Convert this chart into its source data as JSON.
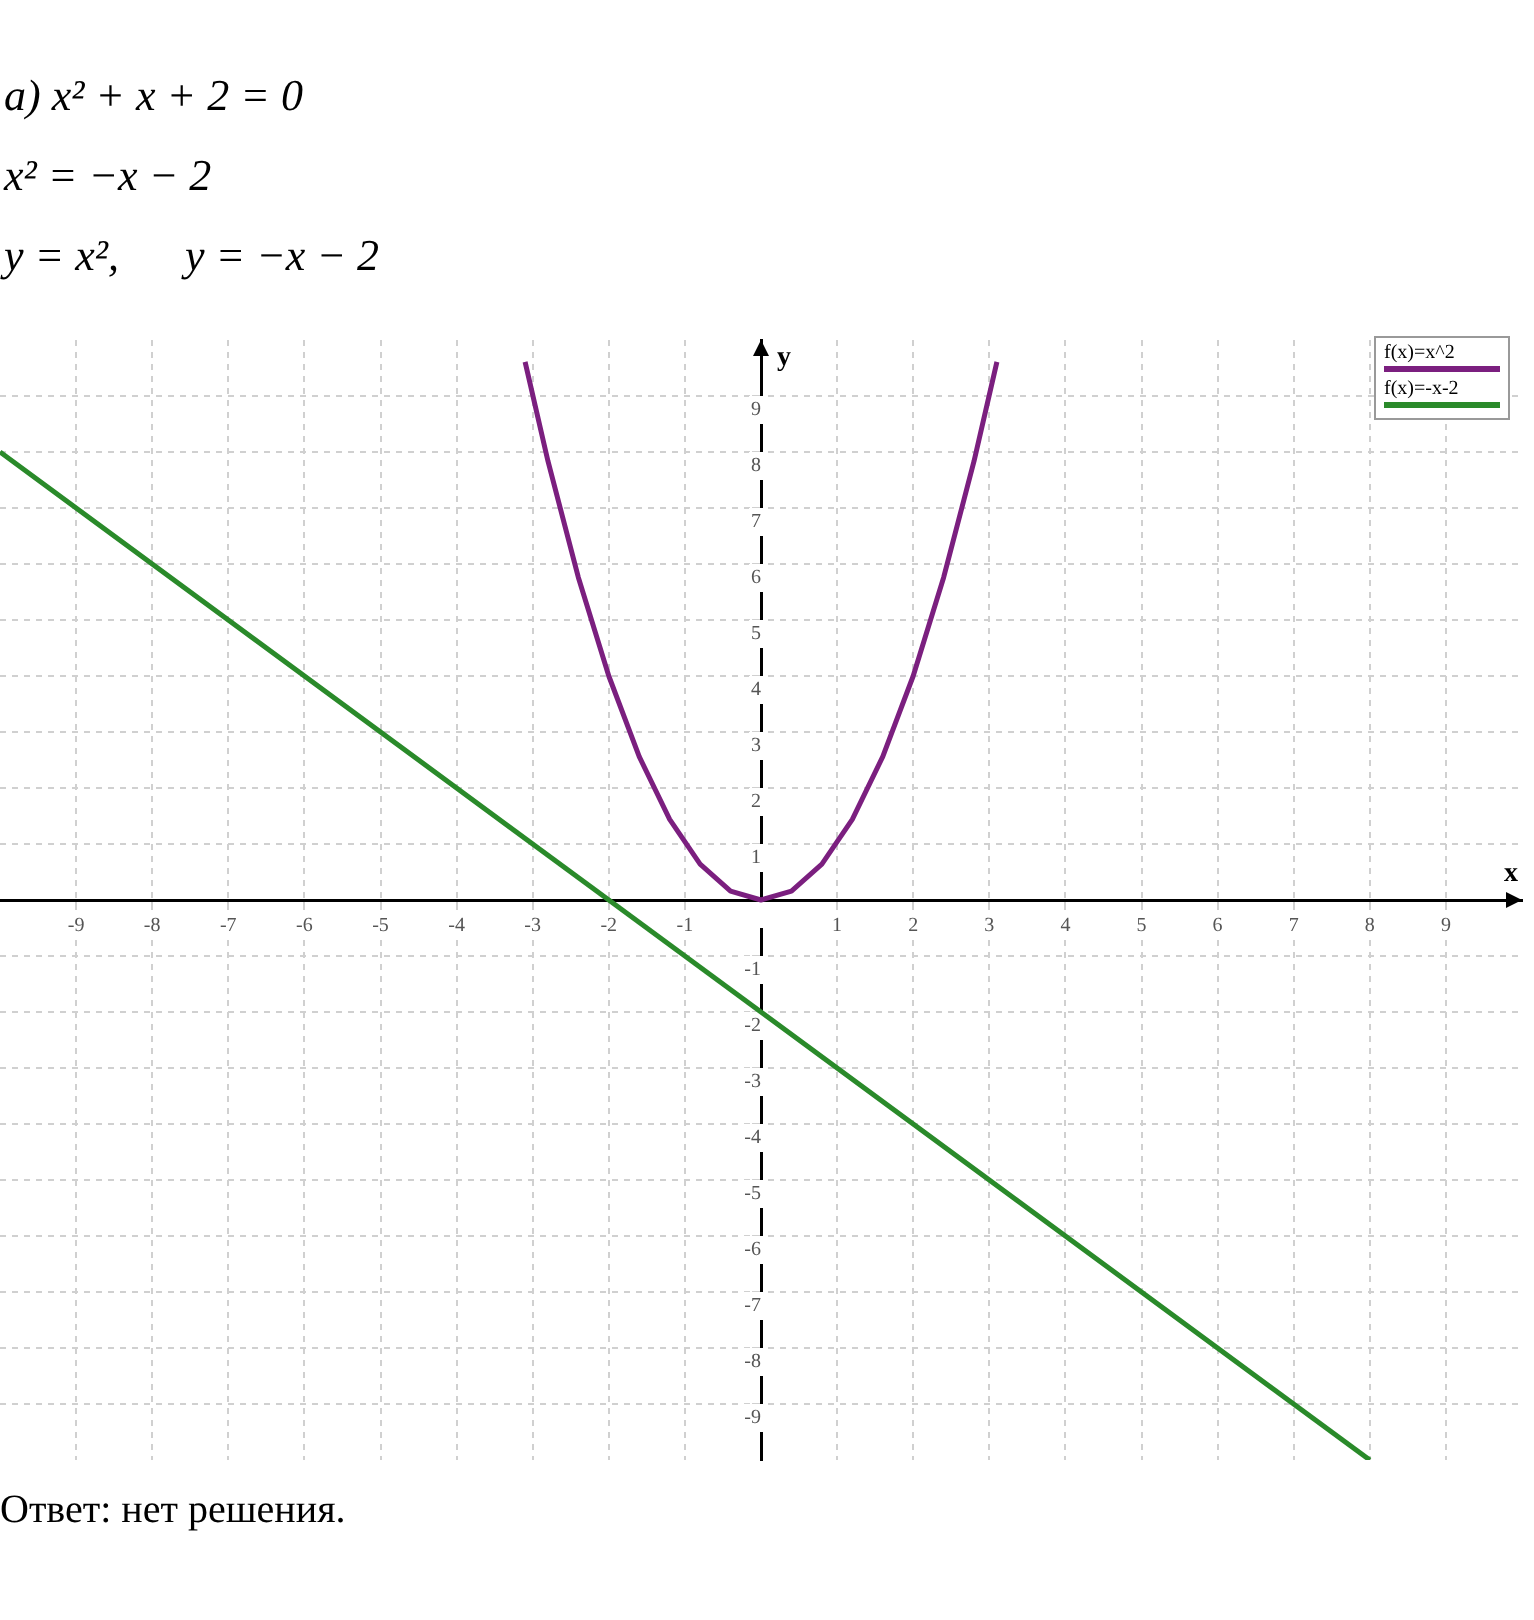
{
  "chart_data": {
    "type": "line",
    "xlabel": "x",
    "ylabel": "y",
    "annotations": [
      "а) x² + x + 2 = 0",
      "x² = −x − 2",
      "y = x²,      y = −x − 2",
      "Ответ: нет решения."
    ],
    "xlim": [
      -10,
      10
    ],
    "ylim": [
      -10,
      10
    ],
    "xticks": [
      -9,
      -8,
      -7,
      -6,
      -5,
      -4,
      -3,
      -2,
      -1,
      {
        "value": 0,
        "label": null
      },
      1,
      2,
      3,
      4,
      5,
      6,
      7,
      8,
      9
    ],
    "yticks": [
      -9,
      -8,
      -7,
      -6,
      -5,
      -4,
      -3,
      -2,
      -1,
      {
        "value": 0,
        "label": null
      },
      1,
      2,
      3,
      4,
      5,
      6,
      7,
      8,
      9
    ],
    "grid": true,
    "legend": "top right",
    "series": [
      {
        "name": "f(x)=x^2",
        "color": "#7b1f7f",
        "x": [
          -3.1,
          -2.8,
          -2.4,
          -2,
          -1.6,
          -1.2,
          -0.8,
          -0.4,
          0,
          0.4,
          0.8,
          1.2,
          1.6,
          2,
          2.4,
          2.8,
          3.1
        ],
        "values": [
          9.61,
          7.84,
          5.76,
          4,
          2.56,
          1.44,
          0.64,
          0.16,
          0,
          0.16,
          0.64,
          1.44,
          2.56,
          4,
          5.76,
          7.84,
          9.61
        ]
      },
      {
        "name": "f(x)=-x-2",
        "color": "#2a8a2a",
        "x": [
          -10,
          -2,
          0,
          8
        ],
        "values": [
          8,
          0,
          -2,
          -10
        ]
      }
    ]
  }
}
